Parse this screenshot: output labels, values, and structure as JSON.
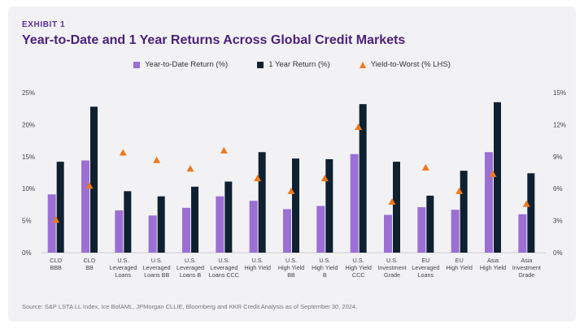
{
  "exhibit_label": "EXHIBIT 1",
  "title": "Year-to-Date and 1 Year Returns Across Global Credit Markets",
  "source": "Source: S&P LSTA LL Index, Ice BofAML, JPMorgan CLLIE, Bloomberg and KKR Credit Analysis as of September 30, 2024.",
  "colors": {
    "ytd": "#9b6fd4",
    "one_year": "#0f2130",
    "ytw": "#f0781e",
    "title": "#4a1f7a"
  },
  "legend": [
    {
      "label": "Year-to-Date Return (%)",
      "series": "ytd"
    },
    {
      "label": "1 Year Return (%)",
      "series": "one_year"
    },
    {
      "label": "Yield-to-Worst (% LHS)",
      "series": "ytw"
    }
  ],
  "chart_data": {
    "type": "bar",
    "categories": [
      [
        "CLO",
        "BBB"
      ],
      [
        "CLO",
        "BB"
      ],
      [
        "U.S.",
        "Leveraged",
        "Loans"
      ],
      [
        "U.S.",
        "Leveraged",
        "Loans BB"
      ],
      [
        "U.S.",
        "Leveraged",
        "Loans B"
      ],
      [
        "U.S.",
        "Leveraged",
        "Loans CCC"
      ],
      [
        "U.S.",
        "High Yield"
      ],
      [
        "U.S.",
        "High Yield",
        "BB"
      ],
      [
        "U.S.",
        "High Yield",
        "B"
      ],
      [
        "U.S.",
        "High Yield",
        "CCC"
      ],
      [
        "U.S.",
        "Investment",
        "Grade"
      ],
      [
        "EU",
        "Leveraged",
        "Loans"
      ],
      [
        "EU",
        "High Yield"
      ],
      [
        "Asia",
        "High Yield"
      ],
      [
        "Asia",
        "Investment",
        "Grade"
      ]
    ],
    "series": [
      {
        "name": "Year-to-Date Return (%)",
        "axis": "left",
        "values": [
          9.1,
          14.4,
          6.6,
          5.8,
          7.0,
          8.8,
          8.1,
          6.8,
          7.3,
          15.4,
          5.9,
          7.1,
          6.7,
          15.7,
          6.0
        ]
      },
      {
        "name": "1 Year Return (%)",
        "axis": "left",
        "values": [
          14.2,
          22.8,
          9.6,
          8.8,
          10.3,
          11.1,
          15.7,
          14.7,
          14.6,
          23.2,
          14.2,
          8.9,
          12.8,
          23.5,
          12.4
        ]
      },
      {
        "name": "Yield-to-Worst (% LHS)",
        "axis": "right",
        "marker": "triangle",
        "values": [
          3.1,
          6.3,
          9.4,
          8.7,
          7.9,
          9.6,
          7.0,
          5.8,
          7.0,
          11.8,
          4.8,
          8.0,
          5.8,
          7.4,
          4.6
        ]
      }
    ],
    "y_left": {
      "min": 0,
      "max": 25,
      "ticks": [
        "0%",
        "5%",
        "10%",
        "15%",
        "20%",
        "25%"
      ]
    },
    "y_right": {
      "min": 0,
      "max": 15,
      "ticks": [
        "0%",
        "3%",
        "6%",
        "9%",
        "12%",
        "15%"
      ]
    },
    "grid": false,
    "legend_position": "top-center"
  }
}
